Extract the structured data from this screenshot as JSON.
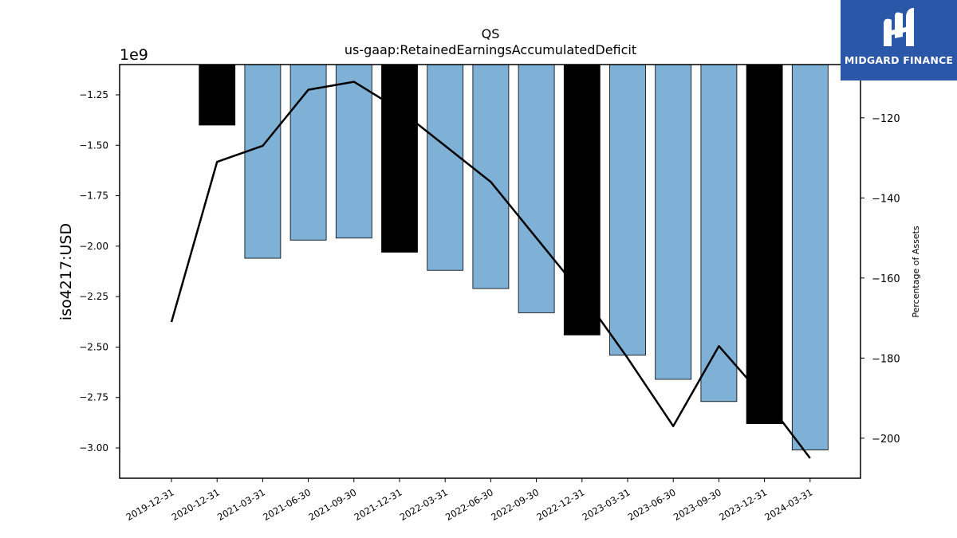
{
  "chart_data": {
    "type": "bar",
    "title": "QS",
    "subtitle": "us-gaap:RetainedEarningsAccumulatedDeficit",
    "ylabel": "iso4217:USD",
    "y_offset_label": "1e9",
    "y2label": "Percentage of Assets",
    "categories": [
      "2019-12-31",
      "2020-12-31",
      "2021-03-31",
      "2021-06-30",
      "2021-09-30",
      "2021-12-31",
      "2022-03-31",
      "2022-06-30",
      "2022-09-30",
      "2022-12-31",
      "2023-03-31",
      "2023-06-30",
      "2023-09-30",
      "2023-12-31",
      "2024-03-31"
    ],
    "values": [
      null,
      -1.4,
      -2.06,
      -1.97,
      -1.96,
      -2.03,
      -2.12,
      -2.21,
      -2.33,
      -2.44,
      -2.54,
      -2.66,
      -2.77,
      -2.88,
      -3.01
    ],
    "annual": [
      false,
      true,
      false,
      false,
      false,
      true,
      false,
      false,
      false,
      true,
      false,
      false,
      false,
      true,
      false
    ],
    "bar_colors": {
      "quarterly": "#7fb0d5",
      "annual": "#000000"
    },
    "line_series": {
      "name": "Percentage of Assets",
      "values": [
        -171,
        -131,
        -127,
        -113,
        -111,
        -118,
        -127,
        -136,
        -150,
        -164,
        -180,
        -197,
        -177,
        -190,
        -205
      ],
      "color": "#000000"
    },
    "ylim": [
      -3.15,
      -1.1
    ],
    "y_ticks": [
      -1.25,
      -1.5,
      -1.75,
      -2.0,
      -2.25,
      -2.5,
      -2.75,
      -3.0
    ],
    "y_tick_labels": [
      "−1.25",
      "−1.50",
      "−1.75",
      "−2.00",
      "−2.25",
      "−2.50",
      "−2.75",
      "−3.00"
    ],
    "y2lim": [
      -210,
      -106.7
    ],
    "y2_ticks": [
      -120,
      -140,
      -160,
      -180,
      -200
    ],
    "y2_tick_labels": [
      "−120",
      "−140",
      "−160",
      "−180",
      "−200"
    ],
    "grid": false,
    "legend": "none"
  },
  "logo": {
    "text": "MIDGARD FINANCE",
    "icon": "midgard-logo-icon"
  }
}
